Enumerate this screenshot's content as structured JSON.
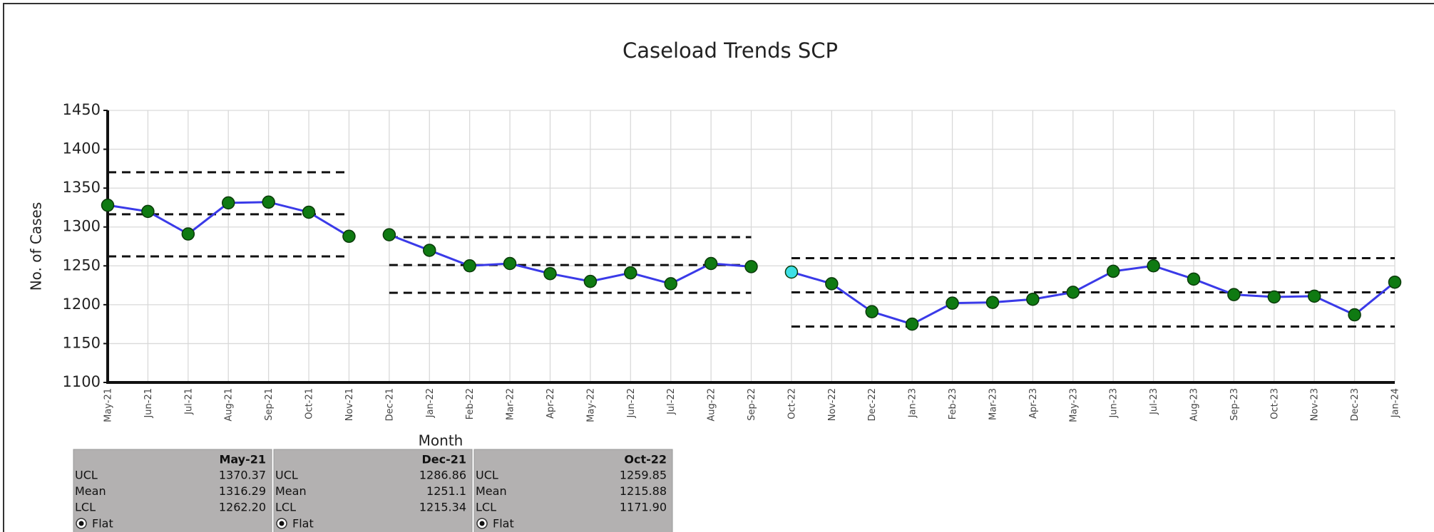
{
  "chart_data": {
    "type": "line",
    "title": "Caseload Trends SCP",
    "x_label": "Month",
    "y_label": "No. of Cases",
    "categories": [
      "May-21",
      "Jun-21",
      "Jul-21",
      "Aug-21",
      "Sep-21",
      "Oct-21",
      "Nov-21",
      "Dec-21",
      "Jan-22",
      "Feb-22",
      "Mar-22",
      "Apr-22",
      "May-22",
      "Jun-22",
      "Jul-22",
      "Aug-22",
      "Sep-22",
      "Oct-22",
      "Nov-22",
      "Dec-22",
      "Jan-23",
      "Feb-23",
      "Mar-23",
      "Apr-23",
      "May-23",
      "Jun-23",
      "Jul-23",
      "Aug-23",
      "Sep-23",
      "Oct-23",
      "Nov-23",
      "Dec-23",
      "Jan-24"
    ],
    "values": [
      1328,
      1320,
      1291,
      1331,
      1332,
      1319,
      1288,
      1290,
      1270,
      1250,
      1253,
      1240,
      1230,
      1241,
      1227,
      1253,
      1249,
      1242,
      1227,
      1191,
      1175,
      1202,
      1203,
      1207,
      1216,
      1243,
      1250,
      1233,
      1213,
      1210,
      1211,
      1187,
      1229
    ],
    "line_color": "#3a3ae8",
    "marker_color": "#0f7a12",
    "highlight": {
      "index": 17,
      "color": "#3ee0e6"
    },
    "ylim": [
      1100,
      1450
    ],
    "yticks": [
      1100,
      1150,
      1200,
      1250,
      1300,
      1350,
      1400,
      1450
    ],
    "grid": true,
    "limit_names": [
      "UCL",
      "Mean",
      "LCL"
    ],
    "mode_label": "Flat",
    "phases": [
      {
        "label": "May-21",
        "start": 0,
        "end": 6,
        "limits": [
          1370.37,
          1316.29,
          1262.2
        ],
        "limit_labels": [
          "1370.37",
          "1316.29",
          "1262.20"
        ]
      },
      {
        "label": "Dec-21",
        "start": 7,
        "end": 16,
        "limits": [
          1286.86,
          1251.1,
          1215.34
        ],
        "limit_labels": [
          "1286.86",
          "1251.1",
          "1215.34"
        ]
      },
      {
        "label": "Oct-22",
        "start": 17,
        "end": 32,
        "limits": [
          1259.85,
          1215.88,
          1171.9
        ],
        "limit_labels": [
          "1259.85",
          "1215.88",
          "1171.90"
        ]
      }
    ]
  }
}
